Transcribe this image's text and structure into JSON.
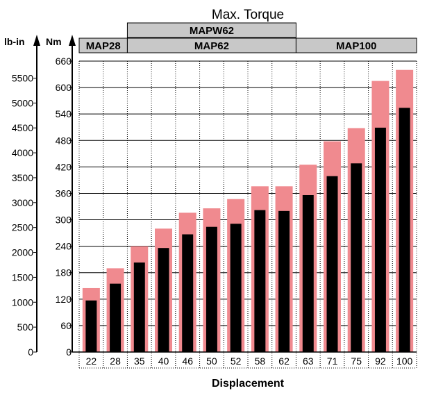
{
  "chart_data": {
    "type": "bar",
    "title": "Max. Torque",
    "xlabel": "Displacement",
    "y_units": {
      "secondary": "lb-in",
      "primary": "Nm"
    },
    "categories": [
      "22",
      "28",
      "35",
      "40",
      "46",
      "50",
      "52",
      "58",
      "62",
      "63",
      "71",
      "75",
      "92",
      "100"
    ],
    "series": [
      {
        "values": [
          145,
          190,
          240,
          280,
          316,
          326,
          347,
          376,
          376,
          425,
          478,
          508,
          615,
          640
        ]
      },
      {
        "values": [
          117,
          155,
          203,
          236,
          267,
          284,
          291,
          322,
          320,
          356,
          399,
          428,
          509,
          554
        ]
      }
    ],
    "ylim": [
      0,
      660
    ],
    "yticks_nm": [
      0,
      60,
      120,
      180,
      240,
      300,
      360,
      420,
      480,
      540,
      600,
      660
    ],
    "yticks_lbin": [
      0,
      500,
      1000,
      1500,
      2000,
      2500,
      3000,
      3500,
      4000,
      4500,
      5000,
      5500
    ],
    "groups": [
      {
        "label": "MAP28",
        "from": 0,
        "to": 1,
        "row": "bottom"
      },
      {
        "label": "MAP62",
        "from": 2,
        "to": 8,
        "row": "bottom"
      },
      {
        "label": "MAP100",
        "from": 9,
        "to": 13,
        "row": "bottom"
      },
      {
        "label": "MAPW62",
        "from": 2,
        "to": 8,
        "row": "top"
      }
    ],
    "colors": {
      "series_0": "#f08a8f",
      "series_1": "#000000",
      "group_box": "#c8c8c8"
    },
    "grid": true
  }
}
